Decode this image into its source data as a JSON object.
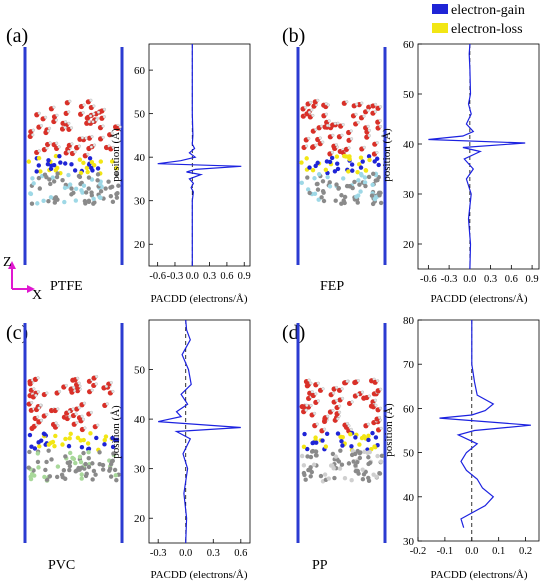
{
  "legend": {
    "items": [
      {
        "label": "electron-gain",
        "color": "#1f24d6"
      },
      {
        "label": "electron-loss",
        "color": "#f2e614"
      }
    ]
  },
  "axis_indicator": {
    "z_label": "Z",
    "x_label": "X",
    "color": "#e018d0"
  },
  "colors": {
    "box_line": "#2b3bd1",
    "curve": "#1c22e0",
    "water_o": "#d93028",
    "water_h": "#e8e8e8",
    "polymer_c": "#8a8a8a",
    "polymer_f": "#9ed8e6",
    "polymer_cl": "#7cc070",
    "charge_gain": "#1f24d6",
    "charge_loss": "#f2e614"
  },
  "panels": [
    {
      "id": "a",
      "letter": "(a)",
      "material": "PTFE",
      "atom_tint": "#9ed8e6",
      "chart_data": {
        "type": "line",
        "xlabel": "PACDD (electrons/Å)",
        "ylabel": "position (Å)",
        "xlim": [
          -0.75,
          1.0
        ],
        "ylim": [
          15,
          66
        ],
        "xticks": [
          -0.6,
          -0.3,
          0.0,
          0.3,
          0.6,
          0.9
        ],
        "xtick_labels": [
          "-0.6",
          "-0.3",
          "0.0",
          "0.3",
          "0.6",
          "0.9"
        ],
        "yticks": [
          20,
          30,
          40,
          50,
          60
        ],
        "ytick_labels": [
          "20",
          "30",
          "40",
          "50",
          "60"
        ],
        "zero_line": true,
        "series": [
          {
            "points": [
              [
                0,
                15
              ],
              [
                0,
                30
              ],
              [
                0.02,
                32
              ],
              [
                -0.02,
                33
              ],
              [
                0.02,
                34
              ],
              [
                -0.05,
                35
              ],
              [
                0.15,
                36
              ],
              [
                -0.1,
                36.6
              ],
              [
                0.05,
                37.2
              ],
              [
                0.85,
                37.9
              ],
              [
                -0.6,
                38.5
              ],
              [
                -0.2,
                39.2
              ],
              [
                0.05,
                40
              ],
              [
                -0.05,
                41
              ],
              [
                0.04,
                42
              ],
              [
                0,
                43
              ],
              [
                0.01,
                45
              ],
              [
                0,
                50
              ],
              [
                0,
                66
              ]
            ]
          }
        ]
      }
    },
    {
      "id": "b",
      "letter": "(b)",
      "material": "FEP",
      "atom_tint": "#9ed8e6",
      "chart_data": {
        "type": "line",
        "xlabel": "PACDD (electrons/Å)",
        "ylabel": "position (Å)",
        "xlim": [
          -0.75,
          1.0
        ],
        "ylim": [
          15,
          60
        ],
        "xticks": [
          -0.6,
          -0.3,
          0.0,
          0.3,
          0.6,
          0.9
        ],
        "xtick_labels": [
          "-0.6",
          "-0.3",
          "0.0",
          "0.3",
          "0.6",
          "0.9"
        ],
        "yticks": [
          20,
          30,
          40,
          50,
          60
        ],
        "ytick_labels": [
          "20",
          "30",
          "40",
          "50",
          "60"
        ],
        "zero_line": true,
        "series": [
          {
            "points": [
              [
                0,
                15
              ],
              [
                0.01,
                20
              ],
              [
                -0.02,
                25
              ],
              [
                0.02,
                30
              ],
              [
                -0.05,
                33
              ],
              [
                0.05,
                35
              ],
              [
                -0.08,
                37
              ],
              [
                0.15,
                38.5
              ],
              [
                -0.1,
                39.3
              ],
              [
                0.8,
                40.2
              ],
              [
                -0.6,
                40.9
              ],
              [
                -0.1,
                41.6
              ],
              [
                0.05,
                42.5
              ],
              [
                -0.05,
                44
              ],
              [
                0.02,
                46
              ],
              [
                -0.02,
                48
              ],
              [
                0.01,
                50
              ],
              [
                0,
                55
              ],
              [
                -0.01,
                58
              ],
              [
                0,
                60
              ]
            ]
          }
        ]
      }
    },
    {
      "id": "c",
      "letter": "(c)",
      "material": "PVC",
      "atom_tint": "#a8d89a",
      "chart_data": {
        "type": "line",
        "xlabel": "PACDD (electrons/Å)",
        "ylabel": "position (Å)",
        "xlim": [
          -0.4,
          0.7
        ],
        "ylim": [
          15,
          60
        ],
        "xticks": [
          -0.3,
          0.0,
          0.3,
          0.6
        ],
        "xtick_labels": [
          "-0.3",
          "0.0",
          "0.3",
          "0.6"
        ],
        "yticks": [
          20,
          30,
          40,
          50
        ],
        "ytick_labels": [
          "20",
          "30",
          "40",
          "50"
        ],
        "zero_line": true,
        "series": [
          {
            "points": [
              [
                0,
                15
              ],
              [
                0.01,
                20
              ],
              [
                -0.02,
                25
              ],
              [
                0.02,
                30
              ],
              [
                -0.03,
                33
              ],
              [
                0.05,
                36
              ],
              [
                -0.1,
                37.5
              ],
              [
                0.6,
                38.3
              ],
              [
                -0.3,
                39.5
              ],
              [
                -0.05,
                40.5
              ],
              [
                -0.1,
                41.5
              ],
              [
                0.02,
                43
              ],
              [
                -0.05,
                45
              ],
              [
                0.06,
                47
              ],
              [
                0.03,
                50
              ],
              [
                -0.04,
                53
              ],
              [
                0.05,
                56
              ],
              [
                0.01,
                58
              ],
              [
                0,
                60
              ]
            ]
          }
        ]
      }
    },
    {
      "id": "d",
      "letter": "(d)",
      "material": "PP",
      "atom_tint": "#cfcfcf",
      "chart_data": {
        "type": "line",
        "xlabel": "PACDD (electrons/Å)",
        "ylabel": "position (Å)",
        "xlim": [
          -0.2,
          0.25
        ],
        "ylim": [
          30,
          80
        ],
        "xticks": [
          -0.2,
          -0.1,
          0.0,
          0.1,
          0.2
        ],
        "xtick_labels": [
          "-0.2",
          "-0.1",
          "0.0",
          "0.1",
          "0.2"
        ],
        "yticks": [
          30,
          40,
          50,
          60,
          70,
          80
        ],
        "ytick_labels": [
          "30",
          "40",
          "50",
          "60",
          "70",
          "80"
        ],
        "zero_line": true,
        "series": [
          {
            "points": [
              [
                -0.03,
                33
              ],
              [
                -0.04,
                35
              ],
              [
                0.05,
                38
              ],
              [
                0.08,
                40
              ],
              [
                0.04,
                42
              ],
              [
                0.02,
                44
              ],
              [
                -0.02,
                46
              ],
              [
                -0.04,
                48
              ],
              [
                -0.02,
                50
              ],
              [
                0.02,
                52
              ],
              [
                -0.05,
                54
              ],
              [
                0.01,
                55
              ],
              [
                0.22,
                56.2
              ],
              [
                -0.12,
                57.8
              ],
              [
                0,
                58.5
              ],
              [
                0.05,
                59.5
              ],
              [
                0.08,
                61
              ],
              [
                0.02,
                63
              ],
              [
                0.01,
                66
              ],
              [
                0,
                70
              ],
              [
                0,
                76
              ],
              [
                0,
                80
              ]
            ]
          }
        ]
      }
    }
  ]
}
